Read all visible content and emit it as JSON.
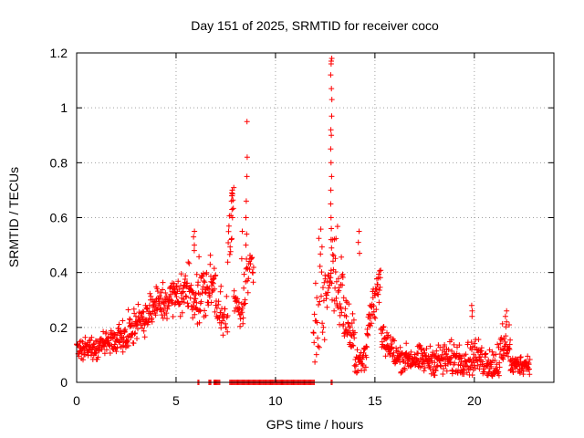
{
  "chart_data": {
    "type": "scatter",
    "title": "Day 151 of 2025, SRMTID for receiver coco",
    "xlabel": "GPS time / hours",
    "ylabel": "SRMTID / TECUs",
    "xlim": [
      0,
      24
    ],
    "ylim": [
      0,
      1.2
    ],
    "xticks": [
      0,
      5,
      10,
      15,
      20
    ],
    "xtick_labels": [
      "0",
      "5",
      "10",
      "15",
      "20"
    ],
    "yticks": [
      0,
      0.2,
      0.4,
      0.6,
      0.8,
      1,
      1.2
    ],
    "ytick_labels": [
      "0",
      "0.2",
      "0.4",
      "0.6",
      "0.8",
      "1",
      "1.2"
    ],
    "grid": true,
    "marker": "plus",
    "series_color": "#ff0000",
    "segments": [
      {
        "x0": 0.0,
        "x1": 1.0,
        "y0": 0.13,
        "y1": 0.12,
        "spread": 0.06,
        "step": 0.016
      },
      {
        "x0": 1.0,
        "x1": 2.5,
        "y0": 0.13,
        "y1": 0.17,
        "spread": 0.07,
        "step": 0.016
      },
      {
        "x0": 2.5,
        "x1": 4.0,
        "y0": 0.18,
        "y1": 0.28,
        "spread": 0.09,
        "step": 0.016
      },
      {
        "x0": 4.0,
        "x1": 5.5,
        "y0": 0.28,
        "y1": 0.33,
        "spread": 0.11,
        "step": 0.016
      },
      {
        "x0": 5.5,
        "x1": 6.2,
        "y0": 0.35,
        "y1": 0.3,
        "spread": 0.16,
        "step": 0.016
      },
      {
        "x0": 6.2,
        "x1": 7.0,
        "y0": 0.32,
        "y1": 0.36,
        "spread": 0.15,
        "step": 0.016
      },
      {
        "x0": 7.0,
        "x1": 7.6,
        "y0": 0.28,
        "y1": 0.22,
        "spread": 0.09,
        "step": 0.02
      },
      {
        "x0": 7.6,
        "x1": 7.9,
        "y0": 0.45,
        "y1": 0.65,
        "spread": 0.2,
        "step": 0.02
      },
      {
        "x0": 7.9,
        "x1": 8.4,
        "y0": 0.3,
        "y1": 0.24,
        "spread": 0.08,
        "step": 0.02
      },
      {
        "x0": 8.4,
        "x1": 8.9,
        "y0": 0.35,
        "y1": 0.42,
        "spread": 0.14,
        "step": 0.02
      },
      {
        "x0": 11.9,
        "x1": 12.35,
        "y0": 0.2,
        "y1": 0.45,
        "spread": 0.28,
        "step": 0.02
      },
      {
        "x0": 12.35,
        "x1": 12.8,
        "y0": 0.25,
        "y1": 0.4,
        "spread": 0.18,
        "step": 0.02
      },
      {
        "x0": 12.8,
        "x1": 13.4,
        "y0": 0.45,
        "y1": 0.3,
        "spread": 0.25,
        "step": 0.016
      },
      {
        "x0": 13.4,
        "x1": 14.0,
        "y0": 0.25,
        "y1": 0.15,
        "spread": 0.14,
        "step": 0.016
      },
      {
        "x0": 14.0,
        "x1": 14.6,
        "y0": 0.06,
        "y1": 0.12,
        "spread": 0.08,
        "step": 0.016
      },
      {
        "x0": 14.6,
        "x1": 15.3,
        "y0": 0.2,
        "y1": 0.38,
        "spread": 0.12,
        "step": 0.016
      },
      {
        "x0": 15.3,
        "x1": 16.0,
        "y0": 0.18,
        "y1": 0.1,
        "spread": 0.09,
        "step": 0.016
      },
      {
        "x0": 16.0,
        "x1": 18.0,
        "y0": 0.09,
        "y1": 0.08,
        "spread": 0.07,
        "step": 0.016
      },
      {
        "x0": 18.0,
        "x1": 20.0,
        "y0": 0.08,
        "y1": 0.09,
        "spread": 0.09,
        "step": 0.016
      },
      {
        "x0": 20.0,
        "x1": 21.0,
        "y0": 0.1,
        "y1": 0.06,
        "spread": 0.09,
        "step": 0.016
      },
      {
        "x0": 21.0,
        "x1": 21.8,
        "y0": 0.06,
        "y1": 0.16,
        "spread": 0.12,
        "step": 0.016
      },
      {
        "x0": 21.8,
        "x1": 22.8,
        "y0": 0.06,
        "y1": 0.07,
        "spread": 0.05,
        "step": 0.016
      }
    ],
    "peaks": [
      {
        "x": 7.8,
        "y": [
          0.7,
          0.69,
          0.68,
          0.66,
          0.63,
          0.6
        ]
      },
      {
        "x": 8.55,
        "y": [
          0.95,
          0.82,
          0.75,
          0.66,
          0.6,
          0.54,
          0.5
        ]
      },
      {
        "x": 8.3,
        "y": [
          0.55,
          0.45
        ]
      },
      {
        "x": 12.8,
        "y": [
          1.18,
          1.17,
          1.16,
          1.12,
          1.07,
          1.03,
          0.97,
          0.92,
          0.9,
          0.85,
          0.8,
          0.75,
          0.7,
          0.65,
          0.6,
          0.56,
          0.52
        ]
      },
      {
        "x": 14.2,
        "y": [
          0.55,
          0.51,
          0.47
        ]
      },
      {
        "x": 19.9,
        "y": [
          0.28,
          0.26,
          0.24
        ]
      },
      {
        "x": 21.6,
        "y": [
          0.26,
          0.24,
          0.22
        ]
      },
      {
        "x": 5.9,
        "y": [
          0.55,
          0.53,
          0.5,
          0.48
        ]
      },
      {
        "x": 7.25,
        "y": [
          0.35,
          0.33
        ]
      }
    ],
    "zero_runs": [
      [
        6.1,
        6.15
      ],
      [
        6.65,
        6.75
      ],
      [
        6.9,
        7.2
      ],
      [
        7.7,
        12.0
      ],
      [
        12.8,
        12.9
      ]
    ],
    "zero_step": 0.05
  }
}
